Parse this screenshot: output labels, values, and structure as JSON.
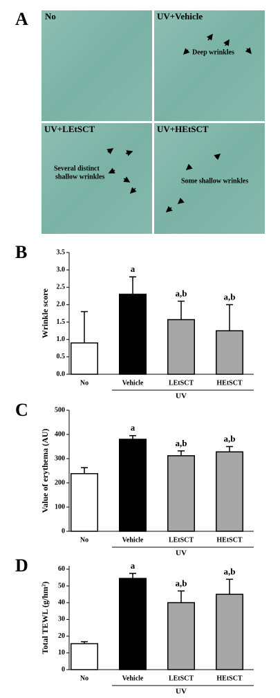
{
  "figure_a": {
    "panel": "A",
    "photos": [
      {
        "label": "No"
      },
      {
        "label": "UV+Vehicle",
        "note": "Deep wrinkles"
      },
      {
        "label": "UV+LEtSCT",
        "note": [
          "Several distinct",
          "shallow wrinkles"
        ]
      },
      {
        "label": "UV+HEtSCT",
        "note": "Some shallow wrinkles"
      }
    ]
  },
  "chart_data": [
    {
      "type": "bar",
      "panel": "B",
      "y_label": "Wrinkle score",
      "group_label": "UV",
      "categories": [
        "No",
        "Vehicle",
        "LEtSCT",
        "HEtSCT"
      ],
      "values": [
        0.9,
        2.3,
        1.57,
        1.25
      ],
      "errors": [
        0.9,
        0.5,
        0.53,
        0.75
      ],
      "annotations": [
        null,
        "a",
        "a,b",
        "a,b"
      ],
      "colors": [
        "#ffffff",
        "#000000",
        "#a6a6a6",
        "#a6a6a6"
      ],
      "ylim": [
        0,
        3.5
      ],
      "yticks": [
        {
          "value": 0,
          "label": "0.0"
        },
        0.5,
        {
          "value": 1,
          "label": "1.0"
        },
        1.5,
        {
          "value": 2,
          "label": "2.0"
        },
        2.5,
        {
          "value": 3,
          "label": "3.0"
        },
        3.5
      ]
    },
    {
      "type": "bar",
      "panel": "C",
      "y_label": "Value of erythema (AU)",
      "group_label": "UV",
      "categories": [
        "No",
        "Vehicle",
        "LEtSCT",
        "HEtSCT"
      ],
      "values": [
        238,
        380,
        312,
        328
      ],
      "errors": [
        25,
        15,
        20,
        22
      ],
      "annotations": [
        null,
        "a",
        "a,b",
        "a,b"
      ],
      "colors": [
        "#ffffff",
        "#000000",
        "#a6a6a6",
        "#a6a6a6"
      ],
      "ylim": [
        0,
        500
      ],
      "yticks": [
        0,
        100,
        200,
        300,
        400,
        500
      ]
    },
    {
      "type": "bar",
      "panel": "D",
      "y_label": "Total TEWL (g/hm²)",
      "group_label": "UV",
      "categories": [
        "No",
        "Vehicle",
        "LEtSCT",
        "HEtSCT"
      ],
      "values": [
        15.5,
        54.5,
        40,
        45
      ],
      "errors": [
        1.2,
        3,
        7,
        9
      ],
      "annotations": [
        null,
        "a",
        "a,b",
        "a,b"
      ],
      "colors": [
        "#ffffff",
        "#000000",
        "#a6a6a6",
        "#a6a6a6"
      ],
      "ylim": [
        0,
        62
      ],
      "yticks": [
        0,
        10,
        20,
        30,
        40,
        50,
        60
      ]
    }
  ]
}
